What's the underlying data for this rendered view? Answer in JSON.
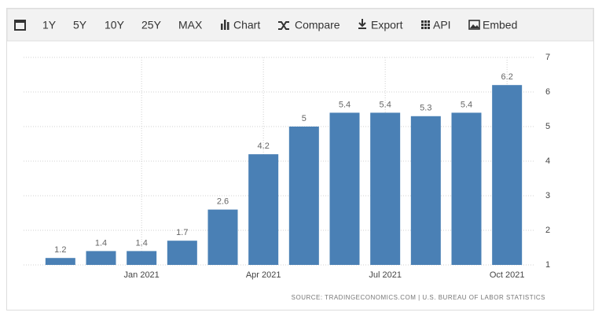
{
  "toolbar": [
    "1Y",
    "5Y",
    "10Y",
    "25Y",
    "MAX",
    "Chart",
    "Compare",
    "Export",
    "API",
    "Embed"
  ],
  "chart_data": {
    "type": "bar",
    "categories": [
      null,
      null,
      "Jan 2021",
      null,
      null,
      "Apr 2021",
      null,
      null,
      "Jul 2021",
      null,
      null,
      "Oct 2021"
    ],
    "values": [
      1.2,
      1.4,
      1.4,
      1.7,
      2.6,
      4.2,
      5,
      5.4,
      5.4,
      5.3,
      5.4,
      6.2
    ],
    "color": "#4a80b5",
    "ylim": [
      1,
      7
    ],
    "yticks": [
      1,
      2,
      3,
      4,
      5,
      6,
      7
    ],
    "grid": true,
    "source": "SOURCE: TRADINGECONOMICS.COM | U.S. BUREAU OF LABOR STATISTICS"
  }
}
